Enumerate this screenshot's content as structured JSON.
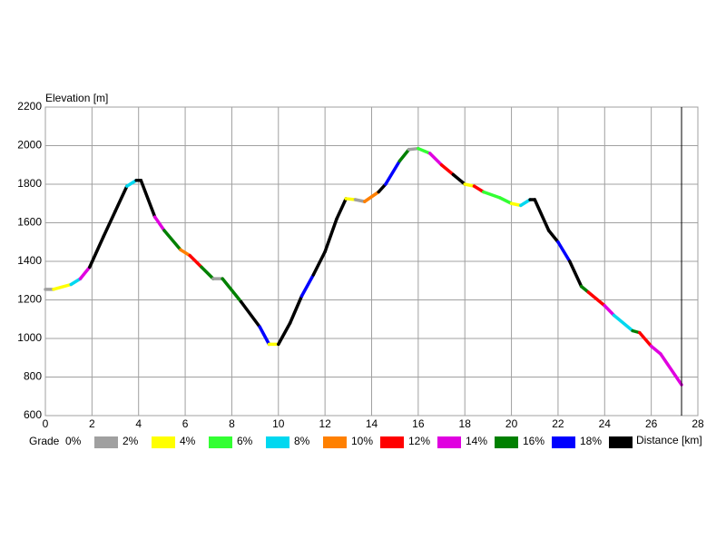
{
  "chart_data": {
    "type": "line",
    "y_label": "Elevation [m]",
    "x_label": "Distance [km]",
    "legend_title": "Grade",
    "x": [
      0,
      0.35,
      1.1,
      1.5,
      1.9,
      2.5,
      3,
      3.5,
      3.9,
      4.1,
      4.7,
      5.1,
      5.8,
      6.2,
      6.7,
      7.2,
      7.6,
      8.4,
      9.2,
      9.6,
      10,
      10.5,
      11,
      11.5,
      12,
      12.5,
      12.9,
      13.3,
      13.7,
      14.3,
      14.6,
      15.2,
      15.6,
      16,
      16.5,
      17,
      17.5,
      18,
      18.4,
      18.8,
      19.5,
      20,
      20.4,
      20.8,
      21,
      21.6,
      22,
      22.5,
      23,
      23.3,
      24,
      24.4,
      25.2,
      25.5,
      26,
      26.4,
      27.3
    ],
    "y": [
      1255,
      1255,
      1280,
      1310,
      1370,
      1530,
      1660,
      1790,
      1820,
      1820,
      1630,
      1560,
      1460,
      1430,
      1370,
      1310,
      1310,
      1190,
      1060,
      970,
      970,
      1080,
      1220,
      1330,
      1450,
      1620,
      1725,
      1720,
      1710,
      1760,
      1800,
      1920,
      1980,
      1985,
      1960,
      1900,
      1850,
      1800,
      1790,
      1760,
      1730,
      1700,
      1690,
      1720,
      1720,
      1560,
      1500,
      1400,
      1270,
      1240,
      1170,
      1120,
      1040,
      1030,
      960,
      920,
      760
    ],
    "segment_colors": [
      "#a0a0a0",
      "#ffff00",
      "#00d8f0",
      "#e000e0",
      "#000000",
      "#000000",
      "#000000",
      "#00d8f0",
      "#000000",
      "#000000",
      "#e000e0",
      "#008000",
      "#ff8000",
      "#ff0000",
      "#008000",
      "#a0a0a0",
      "#008000",
      "#000000",
      "#0000ff",
      "#ffff00",
      "#000000",
      "#000000",
      "#0000ff",
      "#000000",
      "#000000",
      "#000000",
      "#ffff00",
      "#a0a0a0",
      "#ff8000",
      "#000000",
      "#0000ff",
      "#008000",
      "#a0a0a0",
      "#33ff33",
      "#e000e0",
      "#ff0000",
      "#000000",
      "#ffff00",
      "#ff0000",
      "#33ff33",
      "#33ff33",
      "#ffff00",
      "#00d8f0",
      "#000000",
      "#000000",
      "#000000",
      "#0000ff",
      "#000000",
      "#008000",
      "#ff0000",
      "#e000e0",
      "#00d8f0",
      "#008000",
      "#ff0000",
      "#e000e0",
      "#e000e0"
    ],
    "grade_labels": [
      "0%",
      "2%",
      "4%",
      "6%",
      "8%",
      "10%",
      "12%",
      "14%",
      "16%",
      "18%"
    ],
    "grade_colors": [
      "#a0a0a0",
      "#ffff00",
      "#33ff33",
      "#00d8f0",
      "#ff8000",
      "#ff0000",
      "#e000e0",
      "#008000",
      "#0000ff",
      "#000000"
    ],
    "xlim": [
      0,
      28
    ],
    "xticks": [
      0,
      2,
      4,
      6,
      8,
      10,
      12,
      14,
      16,
      18,
      20,
      22,
      24,
      26,
      28
    ],
    "ylim": [
      600,
      2200
    ],
    "yticks": [
      600,
      800,
      1000,
      1200,
      1400,
      1600,
      1800,
      2000,
      2200
    ],
    "grid": true
  }
}
